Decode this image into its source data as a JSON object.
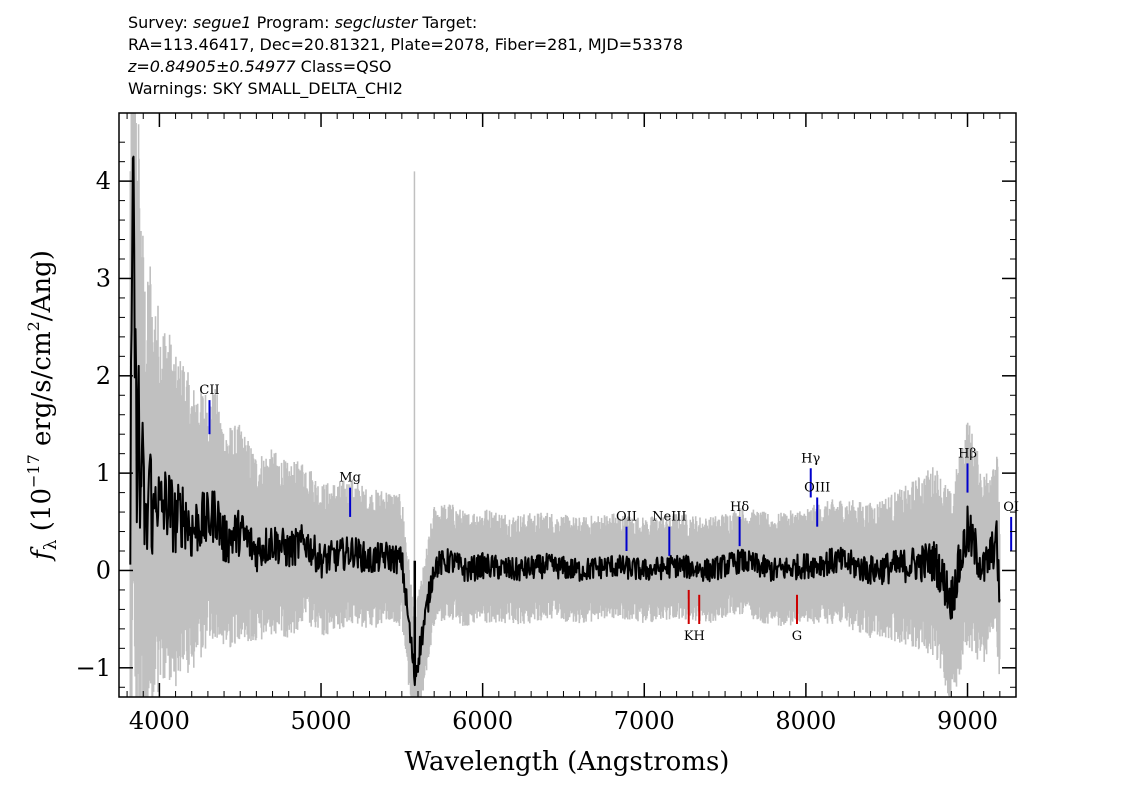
{
  "header": {
    "survey_label": "Survey:",
    "survey": "segue1",
    "program_label": "Program:",
    "program": "segcluster",
    "target_label": "Target:",
    "line2": "RA=113.46417, Dec=20.81321, Plate=2078, Fiber=281, MJD=53378",
    "redshift": "z=0.84905±0.54977",
    "class": "Class=QSO",
    "warnings": "Warnings: SKY SMALL_DELTA_CHI2"
  },
  "chart_data": {
    "type": "line",
    "xlabel": "Wavelength (Angstroms)",
    "ylabel": "f_λ (10^-17 erg/s/cm^2/Ang)",
    "xlim": [
      3750,
      9300
    ],
    "ylim": [
      -1.3,
      4.7
    ],
    "xticks": [
      4000,
      5000,
      6000,
      7000,
      8000,
      9000
    ],
    "yticks": [
      -1,
      0,
      1,
      2,
      3,
      4
    ],
    "series": [
      {
        "role": "flux",
        "color": "#000000",
        "x": [
          3820,
          3830,
          3840,
          3850,
          3860,
          3870,
          3880,
          3890,
          3900,
          3920,
          3940,
          3960,
          3980,
          4000,
          4050,
          4100,
          4150,
          4200,
          4250,
          4300,
          4350,
          4400,
          4500,
          4600,
          4700,
          4800,
          4900,
          5000,
          5100,
          5200,
          5300,
          5400,
          5500,
          5580,
          5700,
          5800,
          5900,
          6000,
          6200,
          6400,
          6600,
          6800,
          7000,
          7200,
          7400,
          7600,
          7800,
          8000,
          8200,
          8400,
          8600,
          8800,
          8900,
          9000,
          9100,
          9180,
          9200
        ],
        "y": [
          0.3,
          2.8,
          3.8,
          2.0,
          1.2,
          1.9,
          0.5,
          1.3,
          0.8,
          0.3,
          1.1,
          0.4,
          0.9,
          0.6,
          0.7,
          0.5,
          0.6,
          0.4,
          0.5,
          0.5,
          0.6,
          0.3,
          0.4,
          0.2,
          0.3,
          0.2,
          0.3,
          0.1,
          0.15,
          0.2,
          0.1,
          0.15,
          0.1,
          -1.1,
          0.05,
          0.1,
          0.0,
          0.05,
          0.0,
          0.05,
          0.0,
          0.05,
          0.0,
          0.05,
          0.0,
          0.1,
          0.0,
          0.05,
          0.1,
          0.0,
          0.05,
          0.1,
          -0.3,
          0.4,
          0.0,
          0.3,
          -0.3
        ]
      },
      {
        "role": "error",
        "color": "#c0c0c0",
        "x": [
          3820,
          3850,
          3900,
          3950,
          4000,
          4100,
          4200,
          4300,
          4400,
          4600,
          4800,
          5000,
          5200,
          5400,
          5600,
          5800,
          6000,
          6500,
          7000,
          7500,
          8000,
          8400,
          8600,
          8800,
          8900,
          9000,
          9100,
          9200
        ],
        "y": [
          4.5,
          3.5,
          2.6,
          2.2,
          2.0,
          1.7,
          1.5,
          1.35,
          1.2,
          1.0,
          0.9,
          0.8,
          0.75,
          0.7,
          0.65,
          0.6,
          0.6,
          0.55,
          0.55,
          0.55,
          0.6,
          0.7,
          0.8,
          1.0,
          1.1,
          1.2,
          1.0,
          1.0
        ]
      }
    ],
    "emission_lines": [
      {
        "label": "CII",
        "x": 4310,
        "y0": 1.4,
        "y1": 1.75,
        "color": "#0000cc"
      },
      {
        "label": "Mg",
        "x": 5180,
        "y0": 0.55,
        "y1": 0.85,
        "color": "#0000cc"
      },
      {
        "label": "OII",
        "x": 6890,
        "y0": 0.2,
        "y1": 0.45,
        "color": "#0000cc"
      },
      {
        "label": "NeIII",
        "x": 7155,
        "y0": 0.15,
        "y1": 0.45,
        "color": "#0000cc"
      },
      {
        "label": "Hδ",
        "x": 7590,
        "y0": 0.25,
        "y1": 0.55,
        "color": "#0000cc"
      },
      {
        "label": "Hγ",
        "x": 8030,
        "y0": 0.75,
        "y1": 1.05,
        "color": "#0000cc"
      },
      {
        "label": "OIII",
        "x": 8070,
        "y0": 0.45,
        "y1": 0.75,
        "color": "#0000cc"
      },
      {
        "label": "Hβ",
        "x": 9000,
        "y0": 0.8,
        "y1": 1.1,
        "color": "#0000cc"
      },
      {
        "label": "OI",
        "x": 9270,
        "y0": 0.2,
        "y1": 0.55,
        "color": "#0000cc"
      }
    ],
    "absorption_lines": [
      {
        "label": "K",
        "x": 7275,
        "y0": -0.55,
        "y1": -0.2,
        "color": "#cc0000"
      },
      {
        "label": "H",
        "x": 7340,
        "y0": -0.55,
        "y1": -0.25,
        "color": "#cc0000"
      },
      {
        "label": "G",
        "x": 7945,
        "y0": -0.55,
        "y1": -0.25,
        "color": "#cc0000"
      }
    ]
  }
}
